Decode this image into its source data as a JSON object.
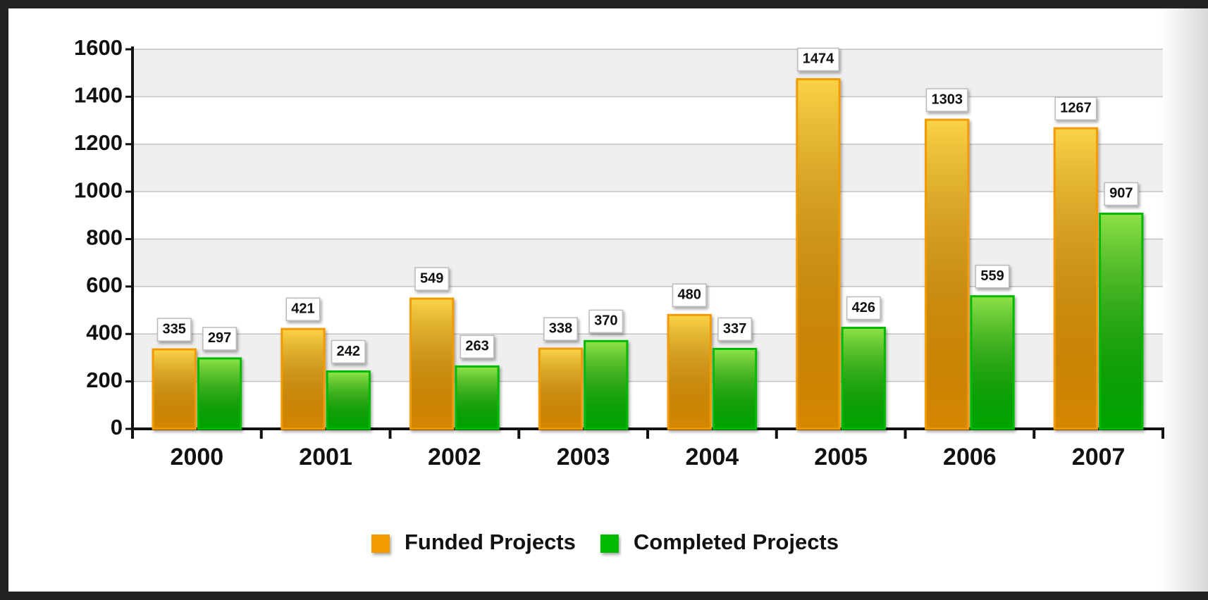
{
  "chart_data": {
    "type": "bar",
    "categories": [
      "2000",
      "2001",
      "2002",
      "2003",
      "2004",
      "2005",
      "2006",
      "2007"
    ],
    "series": [
      {
        "name": "Funded Projects",
        "color": "#f39a00",
        "values": [
          335,
          421,
          549,
          338,
          480,
          1474,
          1303,
          1267
        ]
      },
      {
        "name": "Completed Projects",
        "color": "#00bb00",
        "values": [
          297,
          242,
          263,
          370,
          337,
          426,
          559,
          907
        ]
      }
    ],
    "ylim": [
      0,
      1600
    ],
    "yticks": [
      0,
      200,
      400,
      600,
      800,
      1000,
      1200,
      1400,
      1600
    ],
    "grid": true,
    "legend": "bottom"
  }
}
